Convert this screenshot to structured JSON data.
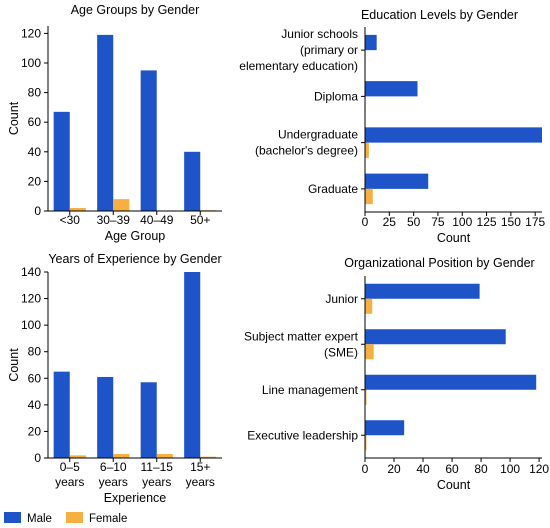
{
  "colors": {
    "male": "#1f54c8",
    "female": "#f5b041"
  },
  "legend": {
    "position": "bottom-left",
    "items": [
      {
        "label": "Male"
      },
      {
        "label": "Female"
      }
    ]
  },
  "chart_data": [
    {
      "id": "age",
      "type": "bar",
      "orientation": "vertical",
      "title": "Age Groups by Gender",
      "xlabel": "Age Group",
      "ylabel": "Count",
      "ylim": [
        0,
        125
      ],
      "yticks": [
        0,
        20,
        40,
        60,
        80,
        100,
        120
      ],
      "categories": [
        [
          "<30"
        ],
        [
          "30–39"
        ],
        [
          "40–49"
        ],
        [
          "50+"
        ]
      ],
      "series": [
        {
          "name": "Male",
          "values": [
            67,
            119,
            95,
            40
          ]
        },
        {
          "name": "Female",
          "values": [
            2,
            8,
            0,
            0.5
          ]
        }
      ],
      "grid": false
    },
    {
      "id": "edu",
      "type": "bar",
      "orientation": "horizontal",
      "title": "Education Levels by Gender",
      "xlabel": "Count",
      "ylabel": "",
      "xlim": [
        0,
        182
      ],
      "xticks": [
        0,
        25,
        50,
        75,
        100,
        125,
        150,
        175
      ],
      "categories": [
        [
          "Junior schools",
          "(primary or",
          "elementary education)"
        ],
        [
          "Diploma"
        ],
        [
          "Undergraduate",
          "(bachelor's degree)"
        ],
        [
          "Graduate"
        ]
      ],
      "series": [
        {
          "name": "Male",
          "values": [
            12,
            54,
            182,
            65
          ]
        },
        {
          "name": "Female",
          "values": [
            0,
            0,
            4,
            8
          ]
        }
      ],
      "grid": false
    },
    {
      "id": "exp",
      "type": "bar",
      "orientation": "vertical",
      "title": "Years of Experience by Gender",
      "xlabel": "Experience",
      "ylabel": "Count",
      "ylim": [
        0,
        140
      ],
      "yticks": [
        0,
        20,
        40,
        60,
        80,
        100,
        120,
        140
      ],
      "categories": [
        [
          "0–5",
          "years"
        ],
        [
          "6–10",
          "years"
        ],
        [
          "11–15",
          "years"
        ],
        [
          "15+",
          "years"
        ]
      ],
      "series": [
        {
          "name": "Male",
          "values": [
            65,
            61,
            57,
            140
          ]
        },
        {
          "name": "Female",
          "values": [
            2,
            3,
            3,
            1
          ]
        }
      ],
      "grid": false
    },
    {
      "id": "org",
      "type": "bar",
      "orientation": "horizontal",
      "title": "Organizational Position by Gender",
      "xlabel": "Count",
      "ylabel": "",
      "xlim": [
        0,
        122
      ],
      "xticks": [
        0,
        20,
        40,
        60,
        80,
        100,
        120
      ],
      "categories": [
        [
          "Junior"
        ],
        [
          "Subject matter expert",
          "(SME)"
        ],
        [
          "Line management"
        ],
        [
          "Executive leadership"
        ]
      ],
      "series": [
        {
          "name": "Male",
          "values": [
            79,
            97,
            118,
            27
          ]
        },
        {
          "name": "Female",
          "values": [
            5,
            6,
            1,
            1
          ]
        }
      ],
      "grid": false
    }
  ]
}
